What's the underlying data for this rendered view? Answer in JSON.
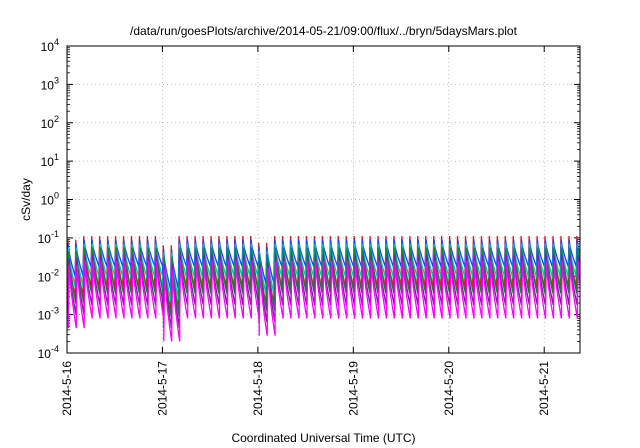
{
  "chart_data": {
    "type": "line",
    "title": "/data/run/goesPlots/archive/2014-05-21/09:00/flux/../bryn/5daysMars.plot",
    "xlabel": "Coordinated Universal Time (UTC)",
    "ylabel": "cSv/day",
    "yscale": "log",
    "ylim_exponent": [
      -4,
      4
    ],
    "y_ticks": [
      {
        "base": "10",
        "exp": "-4"
      },
      {
        "base": "10",
        "exp": "-3"
      },
      {
        "base": "10",
        "exp": "-2"
      },
      {
        "base": "10",
        "exp": "-1"
      },
      {
        "base": "10",
        "exp": "0"
      },
      {
        "base": "10",
        "exp": "1"
      },
      {
        "base": "10",
        "exp": "2"
      },
      {
        "base": "10",
        "exp": "3"
      },
      {
        "base": "10",
        "exp": "4"
      }
    ],
    "xlim": [
      "2014-05-16T00:00",
      "2014-05-21T09:00"
    ],
    "x_ticks": [
      "2014-5-16",
      "2014-5-17",
      "2014-5-18",
      "2014-5-19",
      "2014-5-20",
      "2014-5-21"
    ],
    "grid": true,
    "legend": "none",
    "sawtooth_period_hours": 2,
    "series": [
      {
        "color": "#d62020",
        "peak_exp": -0.95,
        "min_exp": -2.3
      },
      {
        "color": "#1f3fff",
        "peak_exp": -1.05,
        "min_exp": -1.75
      },
      {
        "color": "#00c0c0",
        "peak_exp": -1.15,
        "min_exp": -2.05
      },
      {
        "color": "#0a8a2a",
        "peak_exp": -1.25,
        "min_exp": -2.45
      },
      {
        "color": "#7a1fa0",
        "peak_exp": -1.45,
        "min_exp": -2.75
      },
      {
        "color": "#ff00ff",
        "peak_exp": -1.6,
        "min_exp": -3.1
      }
    ]
  }
}
